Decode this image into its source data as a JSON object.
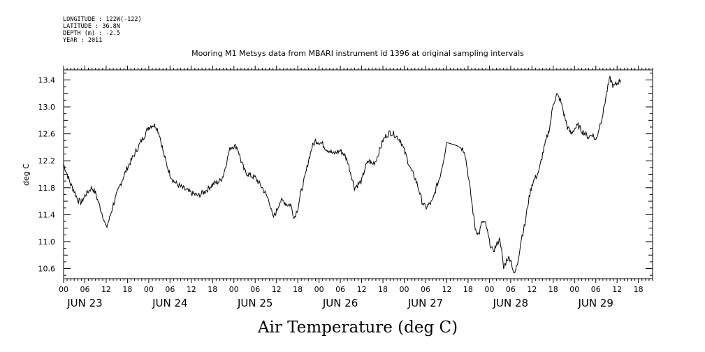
{
  "header": {
    "meta_lines": [
      "LONGITUDE : 122W(-122)",
      "LATITUDE : 36.8N",
      "DEPTH (m) : -2.5",
      "YEAR : 2011"
    ]
  },
  "chart_data": {
    "type": "line",
    "title": "Mooring M1 Metsys data from MBARI instrument id 1396 at original sampling intervals",
    "xlabel": "Air Temperature (deg C)",
    "ylabel": "deg C",
    "ylim": [
      10.45,
      13.55
    ],
    "yticks": [
      10.6,
      11.0,
      11.4,
      11.8,
      12.2,
      12.6,
      13.0,
      13.4
    ],
    "ytick_labels": [
      "10.6",
      "11.0",
      "11.4",
      "11.8",
      "12.2",
      "12.6",
      "13.0",
      "13.4"
    ],
    "x_unit": "hours since JUN 23 00:00",
    "xlim": [
      0,
      166
    ],
    "hour_ticks": [
      0,
      6,
      12,
      18,
      24,
      30,
      36,
      42,
      48,
      54,
      60,
      66,
      72,
      78,
      84,
      90,
      96,
      102,
      108,
      114,
      120,
      126,
      132,
      138,
      144,
      150,
      156,
      162
    ],
    "hour_tick_labels": [
      "00",
      "06",
      "12",
      "18",
      "00",
      "06",
      "12",
      "18",
      "00",
      "06",
      "12",
      "18",
      "00",
      "06",
      "12",
      "18",
      "00",
      "06",
      "12",
      "18",
      "00",
      "06",
      "12",
      "18",
      "00",
      "06",
      "12",
      "18"
    ],
    "day_labels": [
      {
        "label": "JUN 23",
        "hour": 6
      },
      {
        "label": "JUN 24",
        "hour": 30
      },
      {
        "label": "JUN 25",
        "hour": 54
      },
      {
        "label": "JUN 26",
        "hour": 78
      },
      {
        "label": "JUN 27",
        "hour": 102
      },
      {
        "label": "JUN 28",
        "hour": 126
      },
      {
        "label": "JUN 29",
        "hour": 150
      }
    ],
    "grid": false,
    "legend": "none",
    "series": [
      {
        "color": "#000000",
        "points": [
          [
            0,
            12.15
          ],
          [
            1,
            12.0
          ],
          [
            2,
            11.85
          ],
          [
            3,
            11.75
          ],
          [
            4,
            11.62
          ],
          [
            5,
            11.58
          ],
          [
            6,
            11.68
          ],
          [
            7,
            11.75
          ],
          [
            8,
            11.8
          ],
          [
            9,
            11.72
          ],
          [
            10,
            11.55
          ],
          [
            11,
            11.4
          ],
          [
            12,
            11.2
          ],
          [
            13,
            11.35
          ],
          [
            14,
            11.55
          ],
          [
            15,
            11.7
          ],
          [
            16,
            11.85
          ],
          [
            18,
            12.1
          ],
          [
            20,
            12.3
          ],
          [
            22,
            12.5
          ],
          [
            23,
            12.6
          ],
          [
            24,
            12.7
          ],
          [
            25,
            12.73
          ],
          [
            26,
            12.72
          ],
          [
            27,
            12.6
          ],
          [
            28,
            12.35
          ],
          [
            29,
            12.15
          ],
          [
            30,
            12.0
          ],
          [
            31,
            11.9
          ],
          [
            32,
            11.85
          ],
          [
            34,
            11.78
          ],
          [
            36,
            11.72
          ],
          [
            38,
            11.68
          ],
          [
            40,
            11.75
          ],
          [
            42,
            11.85
          ],
          [
            44,
            11.9
          ],
          [
            45,
            11.98
          ],
          [
            46,
            12.2
          ],
          [
            47,
            12.4
          ],
          [
            48,
            12.42
          ],
          [
            49,
            12.4
          ],
          [
            50,
            12.2
          ],
          [
            51,
            12.05
          ],
          [
            52,
            12.0
          ],
          [
            54,
            11.95
          ],
          [
            56,
            11.8
          ],
          [
            58,
            11.6
          ],
          [
            59,
            11.35
          ],
          [
            60,
            11.45
          ],
          [
            61,
            11.6
          ],
          [
            62,
            11.6
          ],
          [
            63,
            11.55
          ],
          [
            64,
            11.55
          ],
          [
            65,
            11.35
          ],
          [
            66,
            11.5
          ],
          [
            67,
            11.75
          ],
          [
            68,
            11.95
          ],
          [
            69,
            12.2
          ],
          [
            70,
            12.4
          ],
          [
            71,
            12.5
          ],
          [
            72,
            12.48
          ],
          [
            73,
            12.45
          ],
          [
            74,
            12.38
          ],
          [
            75,
            12.35
          ],
          [
            76,
            12.3
          ],
          [
            77,
            12.33
          ],
          [
            78,
            12.35
          ],
          [
            79,
            12.3
          ],
          [
            80,
            12.2
          ],
          [
            81,
            12.0
          ],
          [
            82,
            11.8
          ],
          [
            83,
            11.85
          ],
          [
            84,
            11.9
          ],
          [
            85,
            12.1
          ],
          [
            86,
            12.2
          ],
          [
            87,
            12.15
          ],
          [
            88,
            12.2
          ],
          [
            89,
            12.35
          ],
          [
            90,
            12.5
          ],
          [
            91,
            12.58
          ],
          [
            92,
            12.62
          ],
          [
            93,
            12.6
          ],
          [
            94,
            12.55
          ],
          [
            95,
            12.5
          ],
          [
            96,
            12.35
          ],
          [
            97,
            12.2
          ],
          [
            98,
            12.05
          ],
          [
            99,
            11.95
          ],
          [
            100,
            11.8
          ],
          [
            101,
            11.6
          ],
          [
            102,
            11.5
          ],
          [
            103,
            11.55
          ],
          [
            104,
            11.6
          ],
          [
            105,
            11.8
          ],
          [
            106,
            11.95
          ],
          [
            107,
            12.2
          ],
          [
            108,
            12.47
          ],
          [
            110,
            12.44
          ],
          [
            112,
            12.4
          ],
          [
            113,
            12.35
          ],
          [
            114,
            12.0
          ],
          [
            115,
            11.6
          ],
          [
            116,
            11.2
          ],
          [
            117,
            11.1
          ],
          [
            118,
            11.3
          ],
          [
            119,
            11.25
          ],
          [
            120,
            11.0
          ],
          [
            121,
            10.85
          ],
          [
            122,
            10.95
          ],
          [
            123,
            11.05
          ],
          [
            124,
            10.6
          ],
          [
            125,
            10.75
          ],
          [
            126,
            10.75
          ],
          [
            127,
            10.5
          ],
          [
            128,
            10.7
          ],
          [
            129,
            11.05
          ],
          [
            130,
            11.25
          ],
          [
            131,
            11.6
          ],
          [
            132,
            11.85
          ],
          [
            133,
            11.95
          ],
          [
            134,
            12.05
          ],
          [
            135,
            12.3
          ],
          [
            136,
            12.5
          ],
          [
            137,
            12.7
          ],
          [
            138,
            13.05
          ],
          [
            139,
            13.18
          ],
          [
            140,
            13.1
          ],
          [
            141,
            12.9
          ],
          [
            142,
            12.7
          ],
          [
            143,
            12.6
          ],
          [
            144,
            12.68
          ],
          [
            145,
            12.72
          ],
          [
            146,
            12.65
          ],
          [
            147,
            12.6
          ],
          [
            148,
            12.55
          ],
          [
            149,
            12.6
          ],
          [
            150,
            12.5
          ],
          [
            151,
            12.7
          ],
          [
            152,
            12.9
          ],
          [
            153,
            13.2
          ],
          [
            154,
            13.42
          ],
          [
            155,
            13.3
          ],
          [
            156,
            13.35
          ],
          [
            157,
            13.4
          ]
        ]
      }
    ]
  }
}
